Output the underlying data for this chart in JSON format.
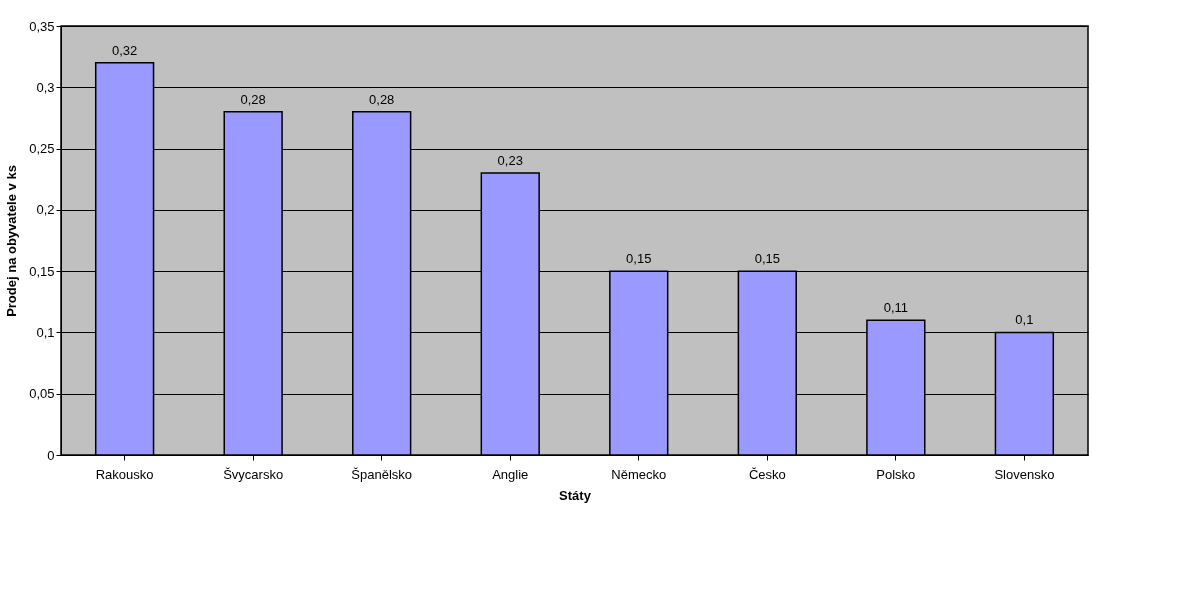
{
  "chart_data": {
    "type": "bar",
    "xlabel": "Státy",
    "ylabel": "Prodej na obyvatele v ks",
    "categories": [
      "Rakousko",
      "Švycarsko",
      "Španělsko",
      "Anglie",
      "Německo",
      "Česko",
      "Polsko",
      "Slovensko"
    ],
    "values": [
      0.32,
      0.28,
      0.28,
      0.23,
      0.15,
      0.15,
      0.11,
      0.1
    ],
    "value_labels": [
      "0,32",
      "0,28",
      "0,28",
      "0,23",
      "0,15",
      "0,15",
      "0,11",
      "0,1"
    ],
    "color": "#9999ff",
    "ylim": [
      0,
      0.35
    ],
    "yticks": [
      0,
      {
        "value": 0.05,
        "label": "0,05"
      },
      {
        "value": 0.1,
        "label": "0,1"
      },
      {
        "value": 0.15,
        "label": "0,15"
      },
      {
        "value": 0.2,
        "label": "0,2"
      },
      {
        "value": 0.25,
        "label": "0,25"
      },
      {
        "value": 0.3,
        "label": "0,3"
      },
      {
        "value": 0.35,
        "label": "0,35"
      }
    ],
    "grid": "y"
  }
}
